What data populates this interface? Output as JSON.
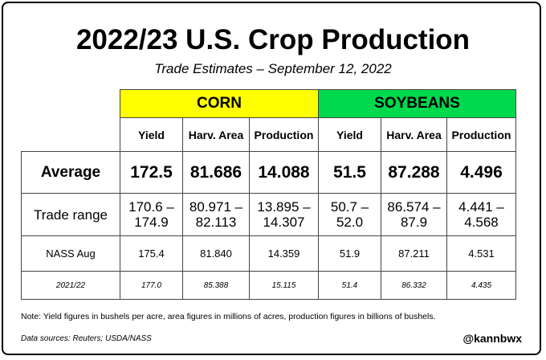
{
  "title": "2022/23 U.S. Crop Production",
  "subtitle": "Trade Estimates – September 12, 2022",
  "table": {
    "groups": [
      {
        "label": "CORN",
        "color": "#ffff00"
      },
      {
        "label": "SOYBEANS",
        "color": "#00d84e"
      }
    ],
    "columns": [
      "Yield",
      "Harv. Area",
      "Production",
      "Yield",
      "Harv. Area",
      "Production"
    ],
    "rows": [
      {
        "label": "Average",
        "values": [
          "172.5",
          "81.686",
          "14.088",
          "51.5",
          "87.288",
          "4.496"
        ]
      },
      {
        "label": "Trade range",
        "values": [
          [
            "170.6 –",
            "174.9"
          ],
          [
            "80.971 –",
            "82.113"
          ],
          [
            "13.895 –",
            "14.307"
          ],
          [
            "50.7 –",
            "52.0"
          ],
          [
            "86.574 –",
            "87.9"
          ],
          [
            "4.441 –",
            "4.568"
          ]
        ]
      },
      {
        "label": "NASS Aug",
        "values": [
          "175.4",
          "81.840",
          "14.359",
          "51.9",
          "87.211",
          "4.531"
        ]
      },
      {
        "label": "2021/22",
        "values": [
          "177.0",
          "85.388",
          "15.115",
          "51.4",
          "86.332",
          "4.435"
        ]
      }
    ]
  },
  "note": "Note: Yield figures in bushels per acre, area figures in millions of acres, production figures in billions of bushels.",
  "sources": "Data sources: Reuters; USDA/NASS",
  "handle": "@kannbwx"
}
